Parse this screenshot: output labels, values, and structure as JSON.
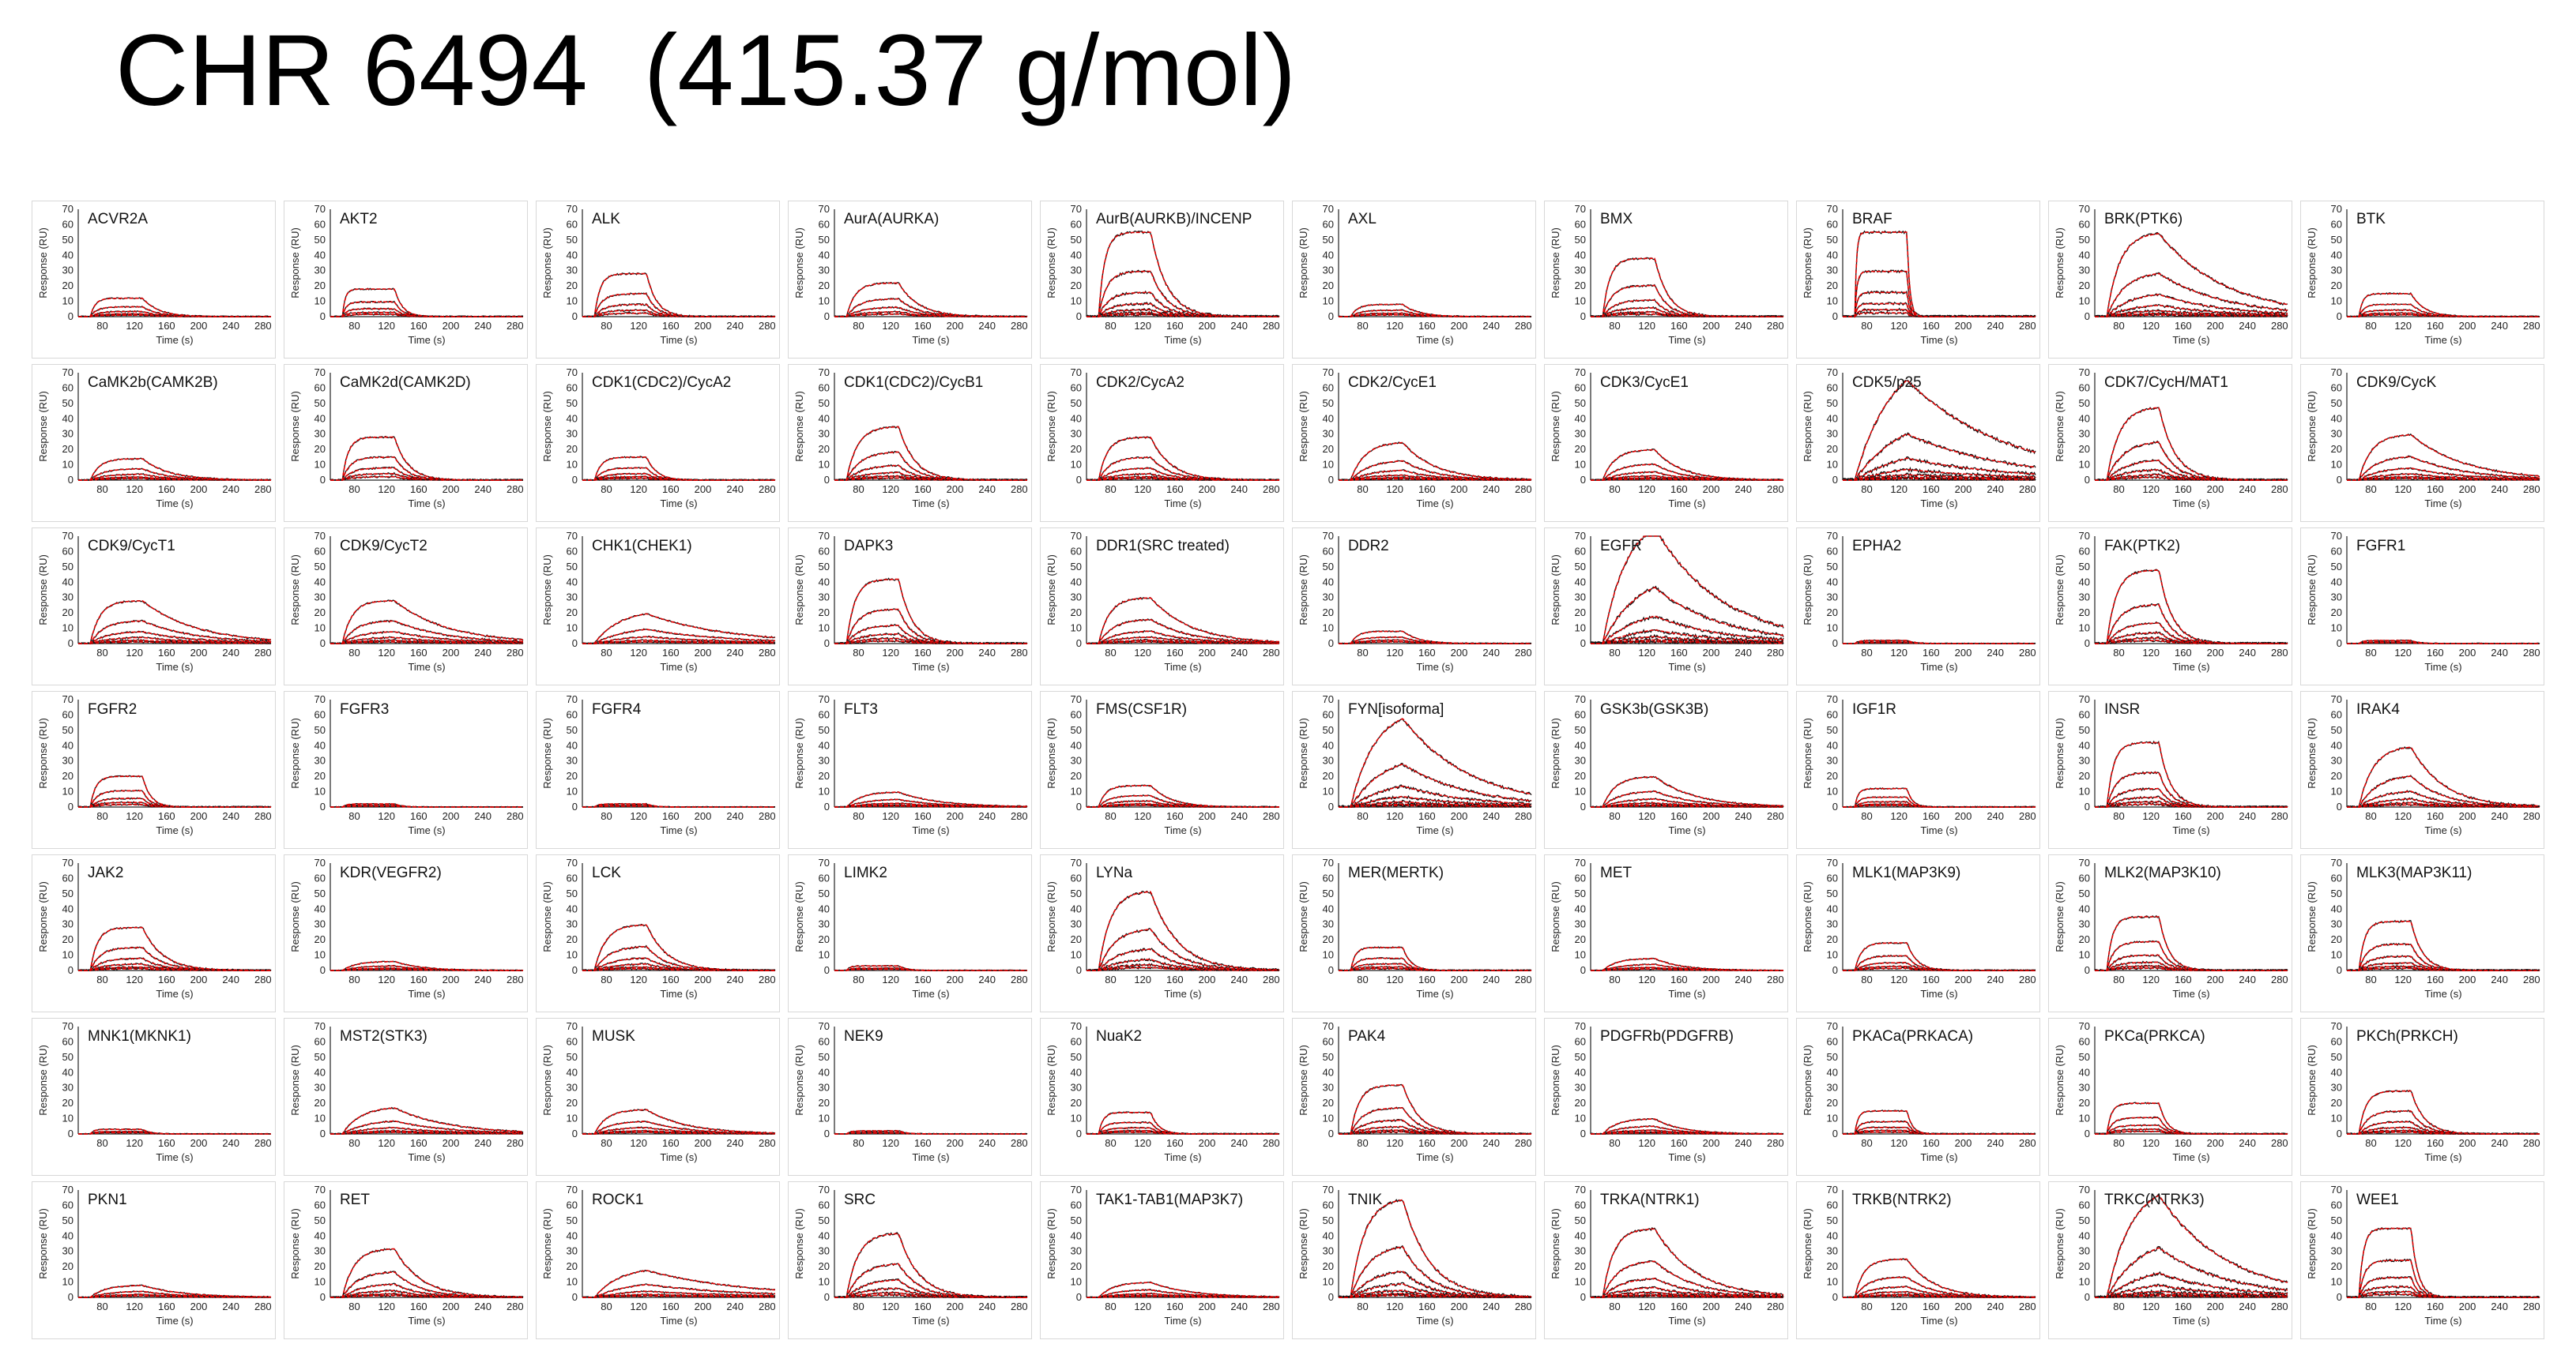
{
  "title": "CHR 6494  (415.37 g/mol)",
  "colors": {
    "fit": "#e00000",
    "data": "#111111",
    "frame": "#d8d8d8"
  },
  "chart_data": {
    "type": "line",
    "layout": "small-multiples",
    "xlabel": "Time (s)",
    "ylabel": "Response (RU)",
    "xlim": [
      50,
      290
    ],
    "xticks": [
      80,
      120,
      160,
      200,
      240,
      280
    ],
    "ylim": [
      0,
      70
    ],
    "yticks": [
      0,
      10,
      20,
      30,
      40,
      50,
      60,
      70
    ],
    "injection_start_s": 65,
    "injection_end_s": 130,
    "series_style": {
      "data": "black",
      "fit": "red"
    },
    "panels": [
      {
        "name": "ACVR2A",
        "rmax": 12,
        "kon": 0.15,
        "koff": 0.05,
        "n": 5
      },
      {
        "name": "AKT2",
        "rmax": 18,
        "kon": 0.25,
        "koff": 0.1,
        "n": 5
      },
      {
        "name": "ALK",
        "rmax": 28,
        "kon": 0.12,
        "koff": 0.08,
        "n": 5
      },
      {
        "name": "AurA(AURKA)",
        "rmax": 22,
        "kon": 0.08,
        "koff": 0.04,
        "n": 5
      },
      {
        "name": "AurB(AURKB)/INCENP",
        "rmax": 55,
        "kon": 0.12,
        "koff": 0.05,
        "n": 7
      },
      {
        "name": "AXL",
        "rmax": 8,
        "kon": 0.1,
        "koff": 0.05,
        "n": 4
      },
      {
        "name": "BMX",
        "rmax": 38,
        "kon": 0.1,
        "koff": 0.06,
        "n": 6
      },
      {
        "name": "BRAF",
        "rmax": 55,
        "kon": 0.4,
        "koff": 0.3,
        "n": 6
      },
      {
        "name": "BRK(PTK6)",
        "rmax": 55,
        "kon": 0.06,
        "koff": 0.012,
        "n": 7
      },
      {
        "name": "BTK",
        "rmax": 15,
        "kon": 0.2,
        "koff": 0.06,
        "n": 5
      },
      {
        "name": "CaMK2b(CAMK2B)",
        "rmax": 14,
        "kon": 0.08,
        "koff": 0.03,
        "n": 5
      },
      {
        "name": "CaMK2d(CAMK2D)",
        "rmax": 28,
        "kon": 0.12,
        "koff": 0.06,
        "n": 5
      },
      {
        "name": "CDK1(CDC2)/CycA2",
        "rmax": 15,
        "kon": 0.1,
        "koff": 0.08,
        "n": 5
      },
      {
        "name": "CDK1(CDC2)/CycB1",
        "rmax": 35,
        "kon": 0.06,
        "koff": 0.05,
        "n": 6
      },
      {
        "name": "CDK2/CycA2",
        "rmax": 28,
        "kon": 0.08,
        "koff": 0.04,
        "n": 6
      },
      {
        "name": "CDK2/CycE1",
        "rmax": 25,
        "kon": 0.05,
        "koff": 0.025,
        "n": 6
      },
      {
        "name": "CDK3/CycE1",
        "rmax": 20,
        "kon": 0.06,
        "koff": 0.03,
        "n": 6
      },
      {
        "name": "CDK5/p25",
        "rmax": 85,
        "kon": 0.02,
        "koff": 0.008,
        "n": 7
      },
      {
        "name": "CDK7/CycH/MAT1",
        "rmax": 48,
        "kon": 0.05,
        "koff": 0.05,
        "n": 6
      },
      {
        "name": "CDK9/CycK",
        "rmax": 30,
        "kon": 0.06,
        "koff": 0.015,
        "n": 6
      },
      {
        "name": "CDK9/CycT1",
        "rmax": 28,
        "kon": 0.08,
        "koff": 0.015,
        "n": 6
      },
      {
        "name": "CDK9/CycT2",
        "rmax": 28,
        "kon": 0.08,
        "koff": 0.015,
        "n": 6
      },
      {
        "name": "CHK1(CHEK1)",
        "rmax": 22,
        "kon": 0.03,
        "koff": 0.01,
        "n": 5
      },
      {
        "name": "DAPK3",
        "rmax": 42,
        "kon": 0.08,
        "koff": 0.06,
        "n": 6
      },
      {
        "name": "DDR1(SRC treated)",
        "rmax": 30,
        "kon": 0.07,
        "koff": 0.02,
        "n": 6
      },
      {
        "name": "DDR2",
        "rmax": 8,
        "kon": 0.1,
        "koff": 0.05,
        "n": 4
      },
      {
        "name": "EGFR",
        "rmax": 85,
        "kon": 0.03,
        "koff": 0.012,
        "n": 7
      },
      {
        "name": "EPHA2",
        "rmax": 2,
        "kon": 0.2,
        "koff": 0.1,
        "n": 3
      },
      {
        "name": "FAK(PTK2)",
        "rmax": 48,
        "kon": 0.07,
        "koff": 0.06,
        "n": 6
      },
      {
        "name": "FGFR1",
        "rmax": 2,
        "kon": 0.2,
        "koff": 0.1,
        "n": 3
      },
      {
        "name": "FGFR2",
        "rmax": 20,
        "kon": 0.12,
        "koff": 0.1,
        "n": 5
      },
      {
        "name": "FGFR3",
        "rmax": 2,
        "kon": 0.2,
        "koff": 0.1,
        "n": 3
      },
      {
        "name": "FGFR4",
        "rmax": 2,
        "kon": 0.2,
        "koff": 0.1,
        "n": 3
      },
      {
        "name": "FLT3",
        "rmax": 10,
        "kon": 0.05,
        "koff": 0.02,
        "n": 5
      },
      {
        "name": "FMS(CSF1R)",
        "rmax": 14,
        "kon": 0.1,
        "koff": 0.04,
        "n": 5
      },
      {
        "name": "FYN[isoforma]",
        "rmax": 65,
        "kon": 0.03,
        "koff": 0.012,
        "n": 7
      },
      {
        "name": "GSK3b(GSK3B)",
        "rmax": 20,
        "kon": 0.06,
        "koff": 0.02,
        "n": 6
      },
      {
        "name": "IGF1R",
        "rmax": 12,
        "kon": 0.2,
        "koff": 0.15,
        "n": 5
      },
      {
        "name": "INSR",
        "rmax": 42,
        "kon": 0.1,
        "koff": 0.07,
        "n": 6
      },
      {
        "name": "IRAK4",
        "rmax": 40,
        "kon": 0.05,
        "koff": 0.025,
        "n": 6
      },
      {
        "name": "JAK2",
        "rmax": 28,
        "kon": 0.1,
        "koff": 0.04,
        "n": 6
      },
      {
        "name": "KDR(VEGFR2)",
        "rmax": 6,
        "kon": 0.05,
        "koff": 0.03,
        "n": 4
      },
      {
        "name": "LCK",
        "rmax": 30,
        "kon": 0.06,
        "koff": 0.04,
        "n": 6
      },
      {
        "name": "LIMK2",
        "rmax": 3,
        "kon": 0.2,
        "koff": 0.1,
        "n": 3
      },
      {
        "name": "LYNa",
        "rmax": 52,
        "kon": 0.06,
        "koff": 0.03,
        "n": 6
      },
      {
        "name": "MER(MERTK)",
        "rmax": 15,
        "kon": 0.15,
        "koff": 0.1,
        "n": 5
      },
      {
        "name": "MET",
        "rmax": 8,
        "kon": 0.05,
        "koff": 0.03,
        "n": 4
      },
      {
        "name": "MLK1(MAP3K9)",
        "rmax": 18,
        "kon": 0.1,
        "koff": 0.08,
        "n": 5
      },
      {
        "name": "MLK2(MAP3K10)",
        "rmax": 35,
        "kon": 0.12,
        "koff": 0.08,
        "n": 6
      },
      {
        "name": "MLK3(MAP3K11)",
        "rmax": 32,
        "kon": 0.12,
        "koff": 0.07,
        "n": 6
      },
      {
        "name": "MNK1(MKNK1)",
        "rmax": 3,
        "kon": 0.2,
        "koff": 0.1,
        "n": 3
      },
      {
        "name": "MST2(STK3)",
        "rmax": 18,
        "kon": 0.04,
        "koff": 0.015,
        "n": 5
      },
      {
        "name": "MUSK",
        "rmax": 16,
        "kon": 0.06,
        "koff": 0.02,
        "n": 5
      },
      {
        "name": "NEK9",
        "rmax": 2,
        "kon": 0.2,
        "koff": 0.1,
        "n": 3
      },
      {
        "name": "NuaK2",
        "rmax": 14,
        "kon": 0.15,
        "koff": 0.1,
        "n": 5
      },
      {
        "name": "PAK4",
        "rmax": 32,
        "kon": 0.08,
        "koff": 0.05,
        "n": 6
      },
      {
        "name": "PDGFRb(PDGFRB)",
        "rmax": 10,
        "kon": 0.05,
        "koff": 0.03,
        "n": 5
      },
      {
        "name": "PKACa(PRKACA)",
        "rmax": 15,
        "kon": 0.2,
        "koff": 0.15,
        "n": 5
      },
      {
        "name": "PKCa(PRKCA)",
        "rmax": 20,
        "kon": 0.15,
        "koff": 0.1,
        "n": 5
      },
      {
        "name": "PKCh(PRKCH)",
        "rmax": 28,
        "kon": 0.1,
        "koff": 0.06,
        "n": 6
      },
      {
        "name": "PKN1",
        "rmax": 8,
        "kon": 0.05,
        "koff": 0.02,
        "n": 4
      },
      {
        "name": "RET",
        "rmax": 32,
        "kon": 0.06,
        "koff": 0.03,
        "n": 6
      },
      {
        "name": "ROCK1",
        "rmax": 20,
        "kon": 0.03,
        "koff": 0.008,
        "n": 5
      },
      {
        "name": "SRC",
        "rmax": 42,
        "kon": 0.06,
        "koff": 0.04,
        "n": 6
      },
      {
        "name": "TAK1-TAB1(MAP3K7)",
        "rmax": 10,
        "kon": 0.05,
        "koff": 0.02,
        "n": 5
      },
      {
        "name": "TNIK",
        "rmax": 65,
        "kon": 0.05,
        "koff": 0.03,
        "n": 7
      },
      {
        "name": "TRKA(NTRK1)",
        "rmax": 45,
        "kon": 0.07,
        "koff": 0.02,
        "n": 7
      },
      {
        "name": "TRKB(NTRK2)",
        "rmax": 25,
        "kon": 0.08,
        "koff": 0.03,
        "n": 6
      },
      {
        "name": "TRKC(NTRK3)",
        "rmax": 75,
        "kon": 0.03,
        "koff": 0.012,
        "n": 7
      },
      {
        "name": "WEE1",
        "rmax": 45,
        "kon": 0.15,
        "koff": 0.12,
        "n": 6
      }
    ]
  }
}
